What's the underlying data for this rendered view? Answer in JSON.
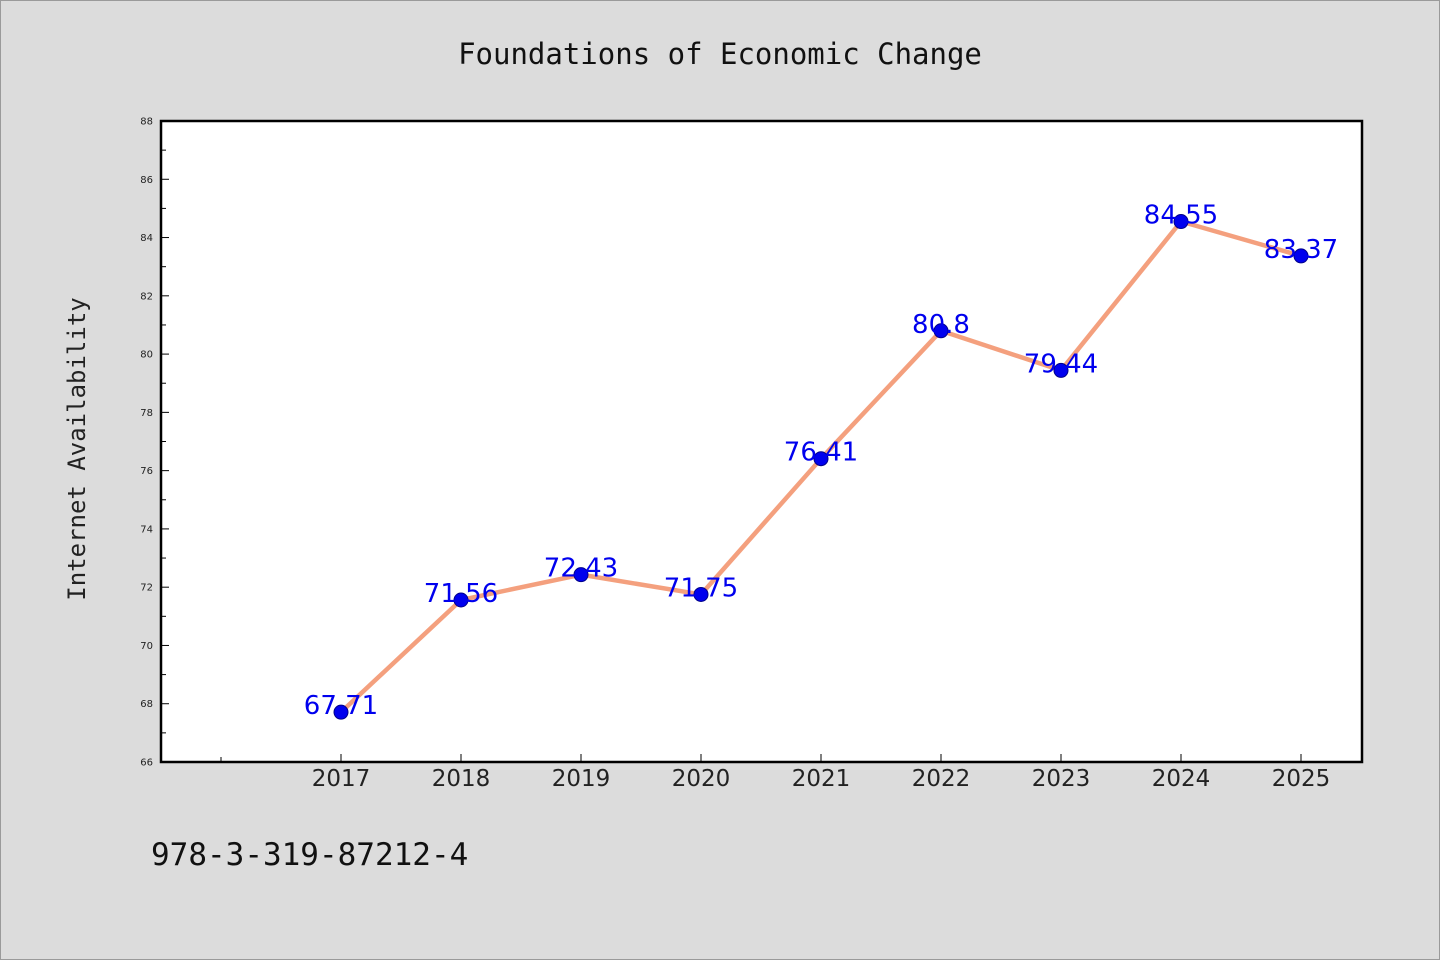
{
  "chart_data": {
    "type": "line",
    "title": "Foundations of Economic Change",
    "xlabel": "",
    "ylabel": "Internet Availability",
    "categories": [
      "2017",
      "2018",
      "2019",
      "2020",
      "2021",
      "2022",
      "2023",
      "2024",
      "2025"
    ],
    "series": [
      {
        "values": [
          67.71,
          71.56,
          72.43,
          71.75,
          76.41,
          80.8,
          79.44,
          84.55,
          83.37
        ],
        "labels": [
          "67.71",
          "71.56",
          "72.43",
          "71.75",
          "76.41",
          "80.8",
          "79.44",
          "84.55",
          "83.37"
        ],
        "line_color": "#f4a07e",
        "marker_color": "#0000ee",
        "label_color": "#0000ee"
      }
    ],
    "ylim": [
      66,
      88
    ],
    "yticks": [
      "66",
      "68",
      "70",
      "72",
      "74",
      "76",
      "78",
      "80",
      "82",
      "84",
      "86",
      "88"
    ],
    "grid": false,
    "legend": "none"
  },
  "footer": {
    "isbn": "978-3-319-87212-4"
  },
  "colors": {
    "figure_background": "#dcdcdc",
    "plot_background": "#ffffff"
  }
}
